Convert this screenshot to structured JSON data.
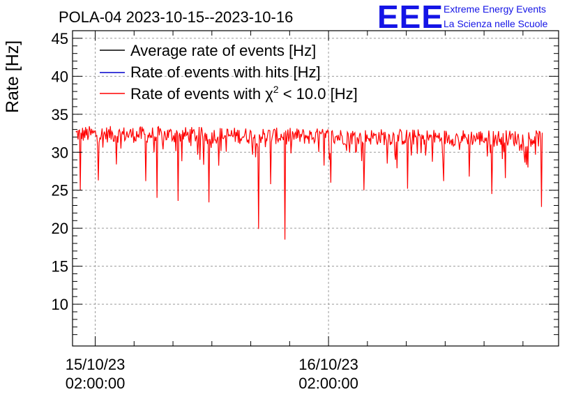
{
  "chart_data": {
    "type": "line",
    "title": "POLA-04 2023-10-15--2023-10-16",
    "ylabel": "Rate [Hz]",
    "xlabel": "",
    "ylim": [
      4.5,
      46
    ],
    "yticks": [
      10,
      15,
      20,
      25,
      30,
      35,
      40,
      45
    ],
    "xlim": [
      "2023-10-14T23:40:00",
      "2023-10-17T01:40:00"
    ],
    "xticks": [
      {
        "x": "2023-10-15T02:00:00",
        "date": "15/10/23",
        "time": "02:00:00"
      },
      {
        "x": "2023-10-16T02:00:00",
        "date": "16/10/23",
        "time": "02:00:00"
      }
    ],
    "grid": true,
    "legend_position": "top-left",
    "series": [
      {
        "name": "Average rate of events [Hz]",
        "color": "#000000",
        "visible": false
      },
      {
        "name": "Rate of events with hits [Hz]",
        "color": "#0000cc",
        "visible": false
      },
      {
        "name_prefix": "Rate of events with ",
        "name_symbol": "χ",
        "name_sup": "2",
        "name_suffix": " < 10.0 [Hz]",
        "color": "#ff0000",
        "visible": true,
        "x_start": "2023-10-15T00:00:00",
        "x_end": "2023-10-16T23:59:00",
        "baseline_start": 32.4,
        "baseline_end": 31.8,
        "noise": 1.1,
        "dips": [
          {
            "x": "2023-10-15T00:30:00",
            "y": 25.0
          },
          {
            "x": "2023-10-15T02:20:00",
            "y": 26.3
          },
          {
            "x": "2023-10-15T04:10:00",
            "y": 28.4
          },
          {
            "x": "2023-10-15T07:10:00",
            "y": 26.2
          },
          {
            "x": "2023-10-15T08:20:00",
            "y": 24.0
          },
          {
            "x": "2023-10-15T10:30:00",
            "y": 23.6
          },
          {
            "x": "2023-10-15T13:40:00",
            "y": 23.4
          },
          {
            "x": "2023-10-15T18:50:00",
            "y": 19.9
          },
          {
            "x": "2023-10-15T20:05:00",
            "y": 25.8
          },
          {
            "x": "2023-10-15T21:30:00",
            "y": 18.5
          },
          {
            "x": "2023-10-16T02:15:00",
            "y": 26.0
          },
          {
            "x": "2023-10-16T05:40:00",
            "y": 25.0
          },
          {
            "x": "2023-10-16T10:10:00",
            "y": 25.2
          },
          {
            "x": "2023-10-16T13:50:00",
            "y": 26.2
          },
          {
            "x": "2023-10-16T16:30:00",
            "y": 26.8
          },
          {
            "x": "2023-10-16T18:50:00",
            "y": 24.5
          },
          {
            "x": "2023-10-16T20:10:00",
            "y": 26.6
          },
          {
            "x": "2023-10-16T23:55:00",
            "y": 22.8
          }
        ]
      }
    ]
  },
  "logo": {
    "mark": "EEE",
    "line1": "Extreme Energy Events",
    "line2": "La Scienza nelle Scuole"
  }
}
